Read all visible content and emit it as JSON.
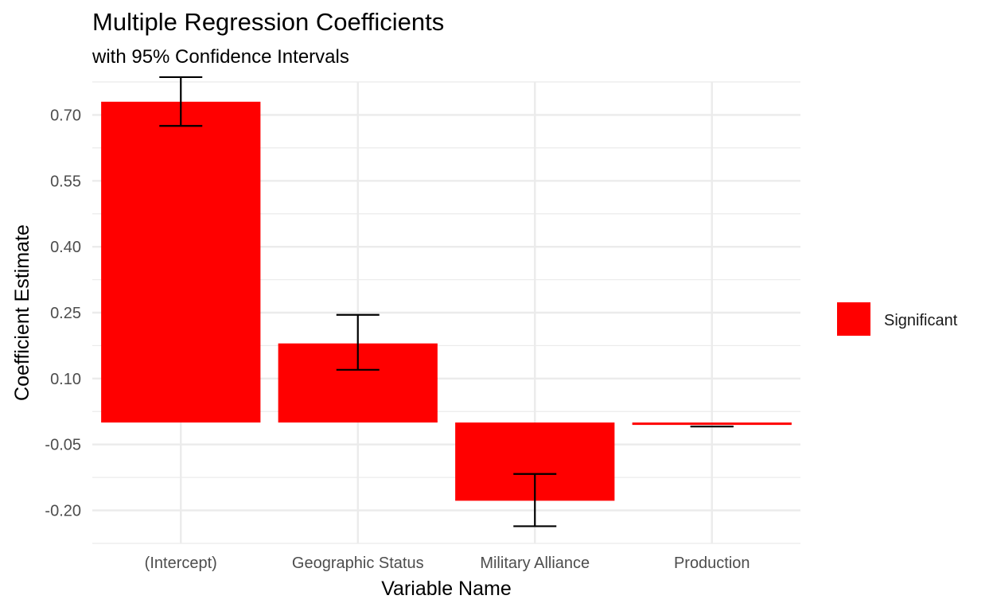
{
  "chart_data": {
    "type": "bar",
    "title": "Multiple Regression Coefficients",
    "subtitle": "with 95% Confidence Intervals",
    "xlabel": "Variable Name",
    "ylabel": "Coefficient Estimate",
    "categories": [
      "(Intercept)",
      "Geographic Status",
      "Military Alliance",
      "Production"
    ],
    "values": [
      0.73,
      0.18,
      -0.178,
      -0.004
    ],
    "ci_lower": [
      0.675,
      0.12,
      -0.236,
      -0.009
    ],
    "ci_upper": [
      0.786,
      0.245,
      -0.117,
      -0.009
    ],
    "significance": [
      "Significant",
      "Significant",
      "Significant",
      "Significant"
    ],
    "yticks": [
      "0.70",
      "0.55",
      "0.40",
      "0.25",
      "0.10",
      "-0.05",
      "-0.20"
    ],
    "ytick_values": [
      0.7,
      0.55,
      0.4,
      0.25,
      0.1,
      -0.05,
      -0.2
    ],
    "ylim": [
      -0.275,
      0.775
    ],
    "grid": true,
    "legend": {
      "position": "right",
      "entries": [
        {
          "label": "Significant",
          "color": "#ff0000"
        }
      ]
    },
    "colors": {
      "bar": "#ff0000",
      "errorbar": "#000000",
      "grid": "#ebebeb"
    }
  }
}
